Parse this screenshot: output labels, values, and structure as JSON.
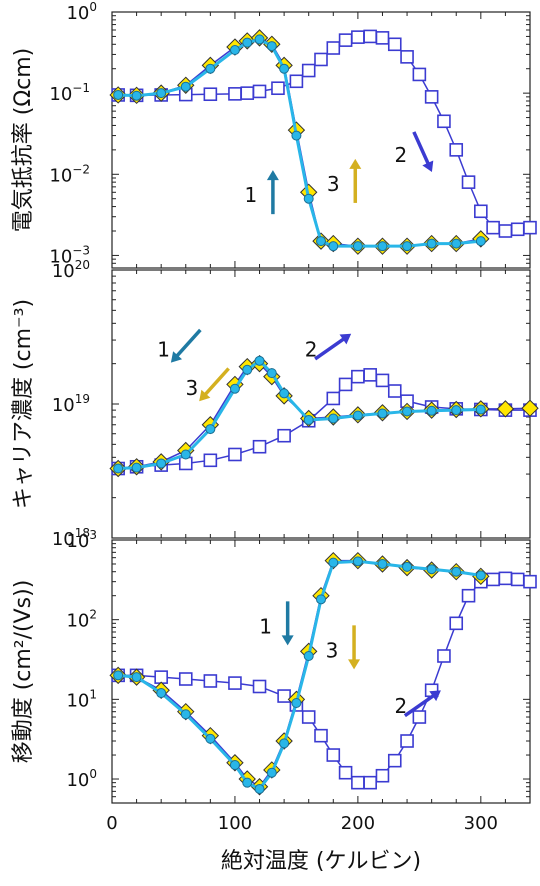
{
  "chart_data": [
    {
      "type": "scatter",
      "ylabel": "電気抵抗率 (Ωcm)",
      "yscale": "log",
      "xlim": [
        0,
        340
      ],
      "ylim": [
        0.0007,
        1.0
      ],
      "yticks": [
        {
          "v": 1,
          "label": "10",
          "sup": "0"
        },
        {
          "v": 0.1,
          "label": "10",
          "sup": "−1"
        },
        {
          "v": 0.01,
          "label": "10",
          "sup": "−2"
        },
        {
          "v": 0.001,
          "label": "10",
          "sup": "−3"
        }
      ],
      "series": [
        {
          "marker": "square-open",
          "color": "#3b3bd1",
          "x": [
            5,
            20,
            40,
            60,
            80,
            100,
            110,
            120,
            135,
            150,
            160,
            170,
            180,
            190,
            200,
            210,
            220,
            230,
            240,
            250,
            260,
            270,
            280,
            290,
            300,
            310,
            320,
            330,
            340
          ],
          "y": [
            0.095,
            0.094,
            0.095,
            0.096,
            0.097,
            0.098,
            0.1,
            0.105,
            0.115,
            0.14,
            0.19,
            0.26,
            0.36,
            0.45,
            0.49,
            0.5,
            0.48,
            0.4,
            0.28,
            0.17,
            0.09,
            0.045,
            0.02,
            0.008,
            0.0035,
            0.0022,
            0.002,
            0.0021,
            0.0022
          ]
        },
        {
          "marker": "diamond",
          "color": "#ffe600",
          "x": [
            5,
            20,
            40,
            60,
            80,
            100,
            110,
            120,
            130,
            140,
            150,
            160,
            170,
            180,
            200,
            220,
            240,
            260,
            280,
            300
          ],
          "y": [
            0.095,
            0.094,
            0.1,
            0.125,
            0.22,
            0.37,
            0.44,
            0.48,
            0.4,
            0.22,
            0.035,
            0.006,
            0.0015,
            0.0014,
            0.0013,
            0.0013,
            0.0013,
            0.0014,
            0.0014,
            0.0016
          ]
        },
        {
          "marker": "circle",
          "color": "#29b6e8",
          "x": [
            5,
            20,
            40,
            60,
            80,
            100,
            110,
            120,
            130,
            140,
            150,
            160,
            170,
            180,
            200,
            220,
            240,
            260,
            280,
            300
          ],
          "y": [
            0.095,
            0.093,
            0.1,
            0.12,
            0.2,
            0.34,
            0.42,
            0.46,
            0.38,
            0.2,
            0.03,
            0.005,
            0.0015,
            0.0013,
            0.0013,
            0.0013,
            0.0013,
            0.0014,
            0.0014,
            0.0015
          ]
        }
      ],
      "annotations": [
        {
          "text": "1",
          "x": 126,
          "y": 0.008,
          "color": "#111111",
          "arrow": "up",
          "arrow_color": "#1f7aa3"
        },
        {
          "text": "3",
          "x": 193,
          "y": 0.011,
          "color": "#111111",
          "arrow": "up",
          "arrow_color": "#d4b020"
        },
        {
          "text": "2",
          "x": 248,
          "y": 0.025,
          "color": "#111111",
          "arrow": "down-right",
          "arrow_color": "#3b3bd1"
        }
      ]
    },
    {
      "type": "scatter",
      "ylabel": "キャリア濃度 (cm⁻³)",
      "yscale": "log",
      "xlim": [
        0,
        340
      ],
      "ylim": [
        1e+18,
        1e+20
      ],
      "yticks": [
        {
          "v": 1e+20,
          "label": "10",
          "sup": "20"
        },
        {
          "v": 1e+19,
          "label": "10",
          "sup": "19"
        },
        {
          "v": 1e+18,
          "label": "10",
          "sup": "18"
        }
      ],
      "series": [
        {
          "marker": "square-open",
          "color": "#3b3bd1",
          "x": [
            5,
            20,
            40,
            60,
            80,
            100,
            120,
            140,
            160,
            180,
            190,
            200,
            210,
            220,
            230,
            240,
            260,
            280,
            300,
            320,
            340
          ],
          "y": [
            3.3e+18,
            3.4e+18,
            3.5e+18,
            3.6e+18,
            3.8e+18,
            4.2e+18,
            4.8e+18,
            5.8e+18,
            7.5e+18,
            1.1e+19,
            1.4e+19,
            1.6e+19,
            1.65e+19,
            1.5e+19,
            1.25e+19,
            1.05e+19,
            9.5e+18,
            9.2e+18,
            9.1e+18,
            9e+18,
            9e+18
          ]
        },
        {
          "marker": "diamond",
          "color": "#ffe600",
          "x": [
            5,
            20,
            40,
            60,
            80,
            100,
            110,
            120,
            130,
            140,
            160,
            180,
            200,
            220,
            240,
            260,
            280,
            300,
            320,
            340
          ],
          "y": [
            3.3e+18,
            3.4e+18,
            3.7e+18,
            4.5e+18,
            7e+18,
            1.4e+19,
            1.9e+19,
            2e+19,
            1.6e+19,
            1.15e+19,
            7.8e+18,
            8e+18,
            8.3e+18,
            8.6e+18,
            8.8e+18,
            9e+18,
            9.1e+18,
            9.2e+18,
            9.2e+18,
            9.3e+18
          ]
        },
        {
          "marker": "circle",
          "color": "#29b6e8",
          "x": [
            5,
            20,
            40,
            60,
            80,
            100,
            110,
            120,
            130,
            140,
            160,
            180,
            200,
            220,
            240,
            260,
            280,
            300
          ],
          "y": [
            3.3e+18,
            3.35e+18,
            3.6e+18,
            4.2e+18,
            6.5e+18,
            1.3e+19,
            1.8e+19,
            2.1e+19,
            1.7e+19,
            1.2e+19,
            7.6e+18,
            7.8e+18,
            8.2e+18,
            8.5e+18,
            8.8e+18,
            8.9e+18,
            9e+18,
            9.1e+18
          ]
        }
      ],
      "annotations": [
        {
          "text": "1",
          "x": 55,
          "y": 3.2e+19,
          "color": "#111111",
          "arrow": "down-left",
          "arrow_color": "#1f7aa3"
        },
        {
          "text": "3",
          "x": 78,
          "y": 1.65e+19,
          "color": "#111111",
          "arrow": "down-left",
          "arrow_color": "#d4b020"
        },
        {
          "text": "2",
          "x": 175,
          "y": 3.2e+19,
          "color": "#111111",
          "arrow": "up-right",
          "arrow_color": "#3b3bd1"
        }
      ]
    },
    {
      "type": "scatter",
      "ylabel": "移動度 (cm²/(Vs))",
      "yscale": "log",
      "xlabel": "絶対温度 (ケルビン)",
      "xlim": [
        0,
        340
      ],
      "ylim": [
        0.5,
        1000
      ],
      "xticks": [
        0,
        100,
        200,
        300
      ],
      "yticks": [
        {
          "v": 1000,
          "label": "10",
          "sup": "3"
        },
        {
          "v": 100,
          "label": "10",
          "sup": "2"
        },
        {
          "v": 10,
          "label": "10",
          "sup": "1"
        },
        {
          "v": 1,
          "label": "10",
          "sup": "0"
        }
      ],
      "series": [
        {
          "marker": "square-open",
          "color": "#3b3bd1",
          "x": [
            5,
            20,
            40,
            60,
            80,
            100,
            120,
            140,
            150,
            160,
            170,
            180,
            190,
            200,
            210,
            220,
            230,
            240,
            250,
            260,
            270,
            280,
            290,
            300,
            310,
            320,
            330,
            340
          ],
          "y": [
            20,
            20,
            19,
            18,
            17,
            16,
            14.5,
            11,
            8.5,
            6,
            3.5,
            2,
            1.2,
            0.9,
            0.9,
            1.1,
            1.7,
            3,
            6,
            13,
            35,
            90,
            200,
            300,
            320,
            330,
            320,
            300
          ]
        },
        {
          "marker": "diamond",
          "color": "#ffe600",
          "x": [
            5,
            20,
            40,
            60,
            80,
            100,
            110,
            120,
            130,
            140,
            150,
            160,
            170,
            180,
            200,
            220,
            240,
            260,
            280,
            300
          ],
          "y": [
            20,
            19,
            13,
            7,
            3.5,
            1.6,
            1.0,
            0.8,
            1.3,
            3,
            10,
            40,
            200,
            550,
            550,
            500,
            450,
            420,
            400,
            350
          ]
        },
        {
          "marker": "circle",
          "color": "#29b6e8",
          "x": [
            5,
            20,
            40,
            60,
            80,
            100,
            110,
            120,
            130,
            140,
            150,
            160,
            170,
            180,
            200,
            220,
            240,
            260,
            280,
            300
          ],
          "y": [
            20,
            19,
            12,
            6.5,
            3.2,
            1.5,
            0.9,
            0.75,
            1.2,
            2.8,
            9,
            35,
            180,
            520,
            540,
            500,
            460,
            430,
            400,
            360
          ]
        }
      ],
      "annotations": [
        {
          "text": "1",
          "x": 138,
          "y": 120,
          "color": "#111111",
          "arrow": "down",
          "arrow_color": "#1f7aa3"
        },
        {
          "text": "3",
          "x": 192,
          "y": 60,
          "color": "#111111",
          "arrow": "down",
          "arrow_color": "#d4b020"
        },
        {
          "text": "2",
          "x": 248,
          "y": 12,
          "color": "#111111",
          "arrow": "up-right",
          "arrow_color": "#3b3bd1"
        }
      ]
    }
  ]
}
